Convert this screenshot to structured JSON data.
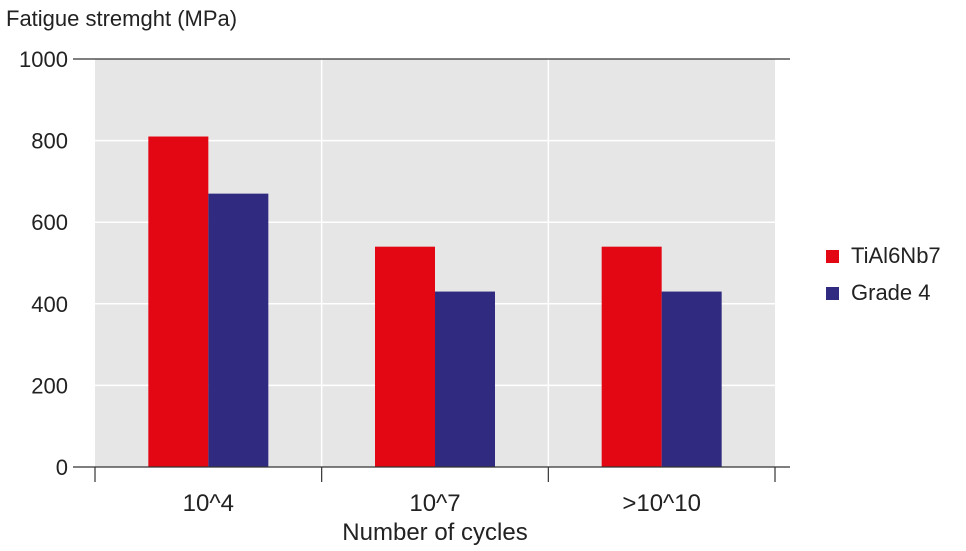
{
  "chart_data": {
    "type": "bar",
    "ylabel": "Fatigue stremght (MPa)",
    "xlabel": "Number of cycles",
    "categories": [
      "10^4",
      "10^7",
      ">10^10"
    ],
    "series": [
      {
        "name": "TiAl6Nb7",
        "color": "#e30613",
        "values": [
          810,
          540,
          540
        ]
      },
      {
        "name": "Grade 4",
        "color": "#302a81",
        "values": [
          670,
          430,
          430
        ]
      }
    ],
    "ylim": [
      0,
      1000
    ],
    "yticks": [
      0,
      200,
      400,
      600,
      800,
      1000
    ],
    "grid": true,
    "legend": "right",
    "background_color": "#e6e6e6",
    "grid_color": "#ffffff"
  }
}
